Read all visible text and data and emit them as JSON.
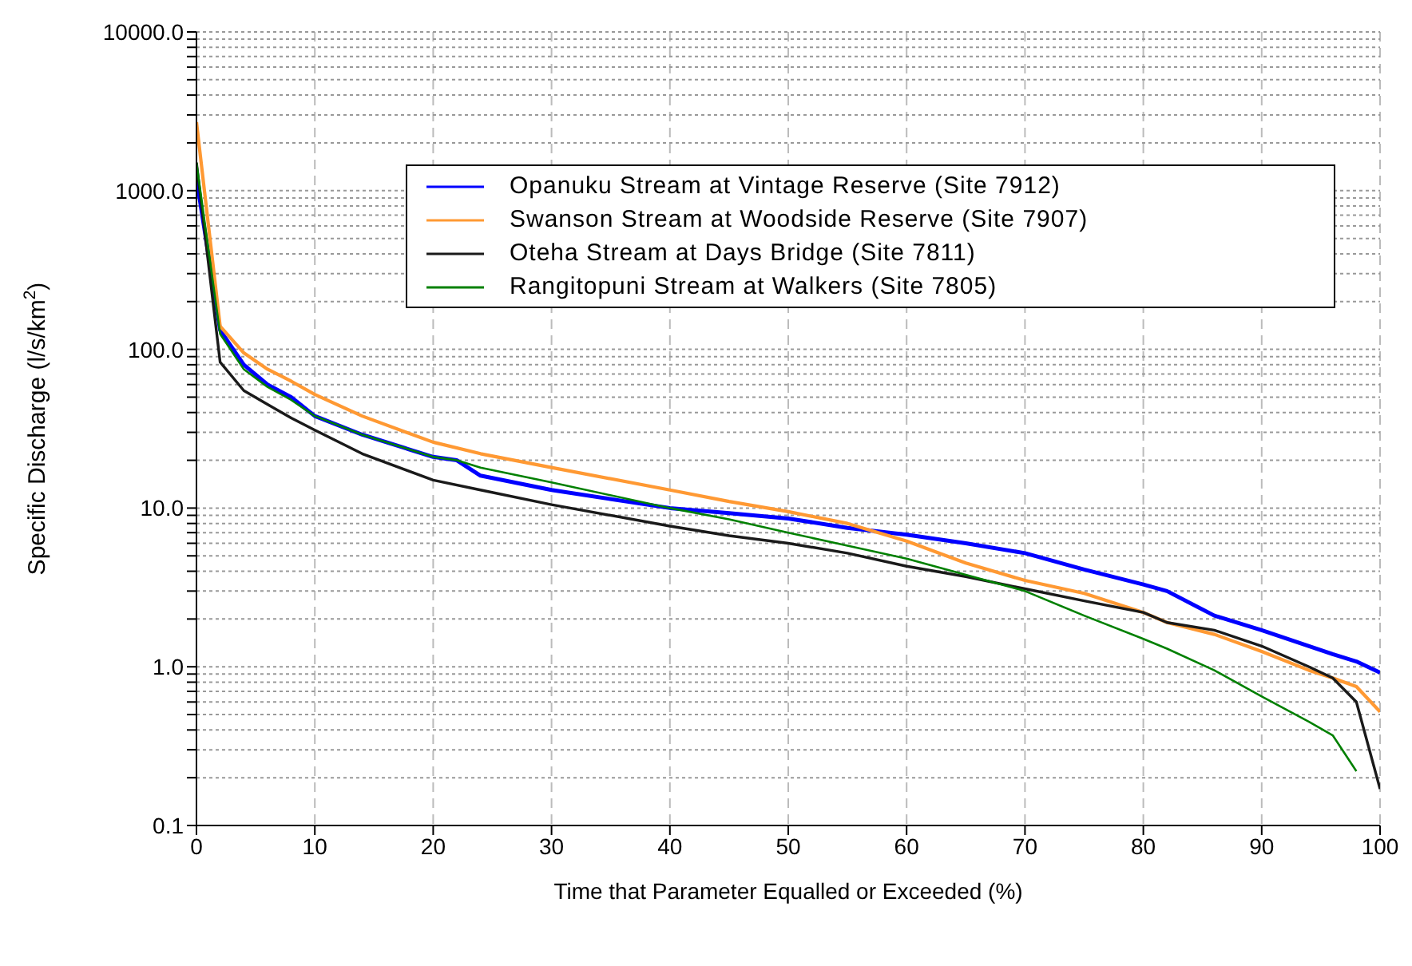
{
  "chart_data": {
    "type": "line",
    "xlabel": "Time that Parameter Equalled or Exceeded (%)",
    "ylabel": "Specific Discharge (l/s/km$^{2}$)",
    "log": "y",
    "grid": true,
    "legend": "top right",
    "line_style": "solid",
    "marker": "none",
    "xlim": [
      0,
      100
    ],
    "xticks": [
      0,
      10,
      20,
      30,
      40,
      50,
      60,
      70,
      80,
      90,
      100
    ],
    "ylim": [
      0.1,
      10000
    ],
    "yticks": [
      {
        "value": 0.1,
        "label": "0.1"
      },
      {
        "value": 0.2,
        "label": null
      },
      {
        "value": 0.3,
        "label": null
      },
      {
        "value": 0.4,
        "label": null
      },
      {
        "value": 0.5,
        "label": null
      },
      {
        "value": 0.6,
        "label": null
      },
      {
        "value": 0.7,
        "label": null
      },
      {
        "value": 0.8,
        "label": null
      },
      {
        "value": 0.9,
        "label": null
      },
      {
        "value": 1,
        "label": "1.0"
      },
      {
        "value": 2,
        "label": null
      },
      {
        "value": 3,
        "label": null
      },
      {
        "value": 4,
        "label": null
      },
      {
        "value": 5,
        "label": null
      },
      {
        "value": 6,
        "label": null
      },
      {
        "value": 7,
        "label": null
      },
      {
        "value": 8,
        "label": null
      },
      {
        "value": 9,
        "label": null
      },
      {
        "value": 10,
        "label": "10.0"
      },
      {
        "value": 20,
        "label": null
      },
      {
        "value": 30,
        "label": null
      },
      {
        "value": 40,
        "label": null
      },
      {
        "value": 50,
        "label": null
      },
      {
        "value": 60,
        "label": null
      },
      {
        "value": 70,
        "label": null
      },
      {
        "value": 80,
        "label": null
      },
      {
        "value": 90,
        "label": null
      },
      {
        "value": 100,
        "label": "100.0"
      },
      {
        "value": 200,
        "label": null
      },
      {
        "value": 300,
        "label": null
      },
      {
        "value": 400,
        "label": null
      },
      {
        "value": 500,
        "label": null
      },
      {
        "value": 600,
        "label": null
      },
      {
        "value": 700,
        "label": null
      },
      {
        "value": 800,
        "label": null
      },
      {
        "value": 900,
        "label": null
      },
      {
        "value": 1000,
        "label": "1000.0"
      },
      {
        "value": 2000,
        "label": null
      },
      {
        "value": 3000,
        "label": null
      },
      {
        "value": 4000,
        "label": null
      },
      {
        "value": 5000,
        "label": null
      },
      {
        "value": 6000,
        "label": null
      },
      {
        "value": 7000,
        "label": null
      },
      {
        "value": 8000,
        "label": null
      },
      {
        "value": 9000,
        "label": null
      },
      {
        "value": 10000,
        "label": "10000.0"
      }
    ],
    "series": [
      {
        "name": "Opanuku Stream at Vintage Reserve (Site 7912)",
        "color": "#0000ff",
        "x": [
          0,
          2,
          4,
          6,
          8,
          10,
          14,
          20,
          22,
          24,
          30,
          40,
          45,
          50,
          55,
          60,
          65,
          70,
          75,
          80,
          82,
          86,
          90,
          94,
          96,
          98,
          100
        ],
        "values": [
          1200,
          132,
          80,
          60,
          50,
          38,
          29,
          21,
          20,
          16,
          13,
          10,
          9.3,
          8.6,
          7.5,
          6.8,
          6,
          5.2,
          4.1,
          3.3,
          3,
          2.1,
          1.7,
          1.35,
          1.2,
          1.08,
          0.92
        ]
      },
      {
        "name": "Swanson Stream at Woodside Reserve (Site 7907)",
        "color": "#ff9933",
        "x": [
          0,
          2,
          4,
          6,
          8,
          10,
          14,
          20,
          24,
          30,
          40,
          45,
          50,
          55,
          60,
          65,
          70,
          75,
          80,
          82,
          86,
          90,
          94,
          96,
          98,
          100
        ],
        "values": [
          2700,
          140,
          95,
          75,
          63,
          52,
          38,
          26,
          22,
          18,
          13,
          11,
          9.5,
          8,
          6.2,
          4.5,
          3.5,
          2.9,
          2.2,
          1.9,
          1.6,
          1.25,
          0.95,
          0.85,
          0.75,
          0.52
        ]
      },
      {
        "name": "Oteha Stream at Days Bridge (Site 7811)",
        "color": "#1a1a1a",
        "x": [
          0,
          2,
          4,
          6,
          8,
          10,
          14,
          20,
          24,
          30,
          40,
          45,
          50,
          55,
          60,
          65,
          70,
          75,
          80,
          82,
          86,
          90,
          94,
          96,
          98,
          100
        ],
        "values": [
          1500,
          83,
          55,
          45,
          37,
          31,
          22,
          15,
          13,
          10.5,
          7.7,
          6.7,
          6,
          5.2,
          4.3,
          3.7,
          3.1,
          2.6,
          2.2,
          1.9,
          1.7,
          1.35,
          1,
          0.85,
          0.6,
          0.17
        ]
      },
      {
        "name": "Rangitopuni Stream at Walkers (Site 7805)",
        "color": "#008000",
        "x": [
          0,
          2,
          4,
          6,
          8,
          10,
          14,
          20,
          22,
          24,
          30,
          40,
          45,
          50,
          55,
          60,
          65,
          70,
          75,
          80,
          82,
          86,
          90,
          94,
          96,
          98
        ],
        "values": [
          1500,
          125,
          75,
          58,
          48,
          38,
          29,
          21,
          20,
          18,
          14.5,
          10,
          8.5,
          7,
          5.8,
          4.8,
          3.8,
          3,
          2.1,
          1.5,
          1.3,
          0.95,
          0.65,
          0.45,
          0.37,
          0.22
        ]
      }
    ]
  }
}
